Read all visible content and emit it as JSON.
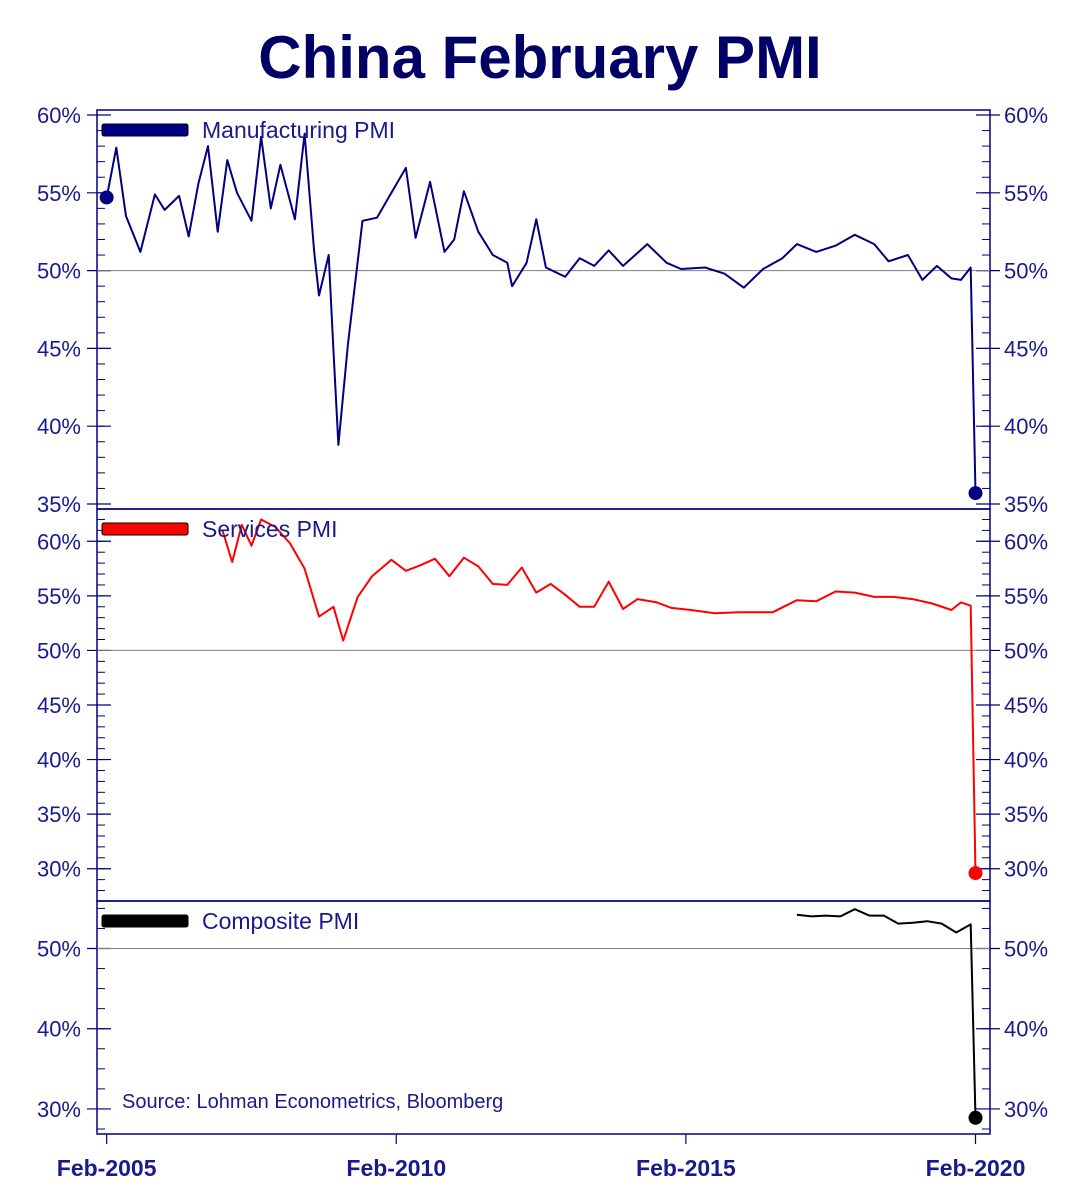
{
  "colors": {
    "title": "#000066",
    "axis": "#000080",
    "text": "#1a1a8c",
    "manufacturing": "#000080",
    "services": "#ff0000",
    "composite": "#000000",
    "refline": "#808080"
  },
  "source_text": "Source: Lohman Econometrics, Bloomberg",
  "chart_data": {
    "type": "line",
    "title": "China February PMI",
    "x_axis": {
      "ticks": [
        "Feb-2005",
        "Feb-2010",
        "Feb-2015",
        "Feb-2020"
      ],
      "range": [
        "2004-12",
        "2020-05"
      ]
    },
    "panels": [
      {
        "name": "Manufacturing PMI",
        "color": "#000080",
        "ylim": [
          35,
          60
        ],
        "yticks": [
          60,
          55,
          50,
          45,
          40,
          35
        ],
        "ytick_labels": [
          "60%",
          "55%",
          "50%",
          "45%",
          "40%",
          "35%"
        ],
        "reference_line": 50,
        "marker_points": [
          [
            "2005-02",
            54.7
          ],
          [
            "2020-02",
            35.7
          ]
        ],
        "points": [
          [
            "2005-02",
            54.7
          ],
          [
            "2005-04",
            57.9
          ],
          [
            "2005-06",
            53.5
          ],
          [
            "2005-09",
            51.2
          ],
          [
            "2005-12",
            54.9
          ],
          [
            "2006-02",
            53.9
          ],
          [
            "2006-05",
            54.8
          ],
          [
            "2006-07",
            52.2
          ],
          [
            "2006-09",
            55.6
          ],
          [
            "2006-11",
            58.0
          ],
          [
            "2007-01",
            52.5
          ],
          [
            "2007-03",
            57.1
          ],
          [
            "2007-05",
            55.0
          ],
          [
            "2007-08",
            53.2
          ],
          [
            "2007-10",
            58.6
          ],
          [
            "2007-12",
            54.0
          ],
          [
            "2008-02",
            56.8
          ],
          [
            "2008-05",
            53.3
          ],
          [
            "2008-07",
            58.8
          ],
          [
            "2008-09",
            51.2
          ],
          [
            "2008-10",
            48.4
          ],
          [
            "2008-12",
            51.0
          ],
          [
            "2009-01",
            44.8
          ],
          [
            "2009-02",
            38.8
          ],
          [
            "2009-04",
            45.3
          ],
          [
            "2009-07",
            53.2
          ],
          [
            "2009-10",
            53.4
          ],
          [
            "2010-01",
            55.0
          ],
          [
            "2010-04",
            56.6
          ],
          [
            "2010-06",
            52.1
          ],
          [
            "2010-09",
            55.7
          ],
          [
            "2010-12",
            51.2
          ],
          [
            "2011-02",
            52.0
          ],
          [
            "2011-04",
            55.1
          ],
          [
            "2011-07",
            52.5
          ],
          [
            "2011-10",
            51.0
          ],
          [
            "2012-01",
            50.5
          ],
          [
            "2012-02",
            49.0
          ],
          [
            "2012-05",
            50.5
          ],
          [
            "2012-07",
            53.3
          ],
          [
            "2012-09",
            50.2
          ],
          [
            "2013-01",
            49.6
          ],
          [
            "2013-04",
            50.8
          ],
          [
            "2013-07",
            50.3
          ],
          [
            "2013-10",
            51.3
          ],
          [
            "2014-01",
            50.3
          ],
          [
            "2014-06",
            51.7
          ],
          [
            "2014-10",
            50.5
          ],
          [
            "2015-01",
            50.1
          ],
          [
            "2015-06",
            50.2
          ],
          [
            "2015-10",
            49.8
          ],
          [
            "2016-02",
            48.9
          ],
          [
            "2016-06",
            50.1
          ],
          [
            "2016-10",
            50.8
          ],
          [
            "2017-01",
            51.7
          ],
          [
            "2017-05",
            51.2
          ],
          [
            "2017-09",
            51.6
          ],
          [
            "2018-01",
            52.3
          ],
          [
            "2018-05",
            51.7
          ],
          [
            "2018-08",
            50.6
          ],
          [
            "2018-12",
            51.0
          ],
          [
            "2019-03",
            49.4
          ],
          [
            "2019-06",
            50.3
          ],
          [
            "2019-09",
            49.5
          ],
          [
            "2019-11",
            49.4
          ],
          [
            "2020-01",
            50.2
          ],
          [
            "2020-02",
            35.7
          ]
        ]
      },
      {
        "name": "Services PMI",
        "color": "#ff0000",
        "ylim": [
          27.5,
          62.5
        ],
        "yticks": [
          60,
          55,
          50,
          45,
          40,
          35,
          30
        ],
        "ytick_labels": [
          "60%",
          "55%",
          "50%",
          "45%",
          "40%",
          "35%",
          "30%"
        ],
        "reference_line": 50,
        "marker_points": [
          [
            "2020-02",
            29.6
          ]
        ],
        "points": [
          [
            "2007-02",
            61.0
          ],
          [
            "2007-04",
            58.1
          ],
          [
            "2007-06",
            61.5
          ],
          [
            "2007-08",
            59.6
          ],
          [
            "2007-10",
            62.0
          ],
          [
            "2008-01",
            61.3
          ],
          [
            "2008-04",
            59.8
          ],
          [
            "2008-07",
            57.5
          ],
          [
            "2008-10",
            53.1
          ],
          [
            "2009-01",
            54.0
          ],
          [
            "2009-03",
            50.9
          ],
          [
            "2009-06",
            54.9
          ],
          [
            "2009-09",
            56.8
          ],
          [
            "2010-01",
            58.3
          ],
          [
            "2010-04",
            57.3
          ],
          [
            "2010-07",
            57.8
          ],
          [
            "2010-10",
            58.4
          ],
          [
            "2011-01",
            56.8
          ],
          [
            "2011-04",
            58.5
          ],
          [
            "2011-07",
            57.7
          ],
          [
            "2011-10",
            56.1
          ],
          [
            "2012-01",
            56.0
          ],
          [
            "2012-04",
            57.6
          ],
          [
            "2012-07",
            55.3
          ],
          [
            "2012-10",
            56.1
          ],
          [
            "2013-01",
            55.1
          ],
          [
            "2013-04",
            54.0
          ],
          [
            "2013-07",
            54.0
          ],
          [
            "2013-10",
            56.3
          ],
          [
            "2014-01",
            53.8
          ],
          [
            "2014-04",
            54.7
          ],
          [
            "2014-08",
            54.4
          ],
          [
            "2014-11",
            53.9
          ],
          [
            "2015-03",
            53.7
          ],
          [
            "2015-08",
            53.4
          ],
          [
            "2016-01",
            53.5
          ],
          [
            "2016-04",
            53.5
          ],
          [
            "2016-08",
            53.5
          ],
          [
            "2017-01",
            54.6
          ],
          [
            "2017-05",
            54.5
          ],
          [
            "2017-09",
            55.4
          ],
          [
            "2018-01",
            55.3
          ],
          [
            "2018-05",
            54.9
          ],
          [
            "2018-09",
            54.9
          ],
          [
            "2019-01",
            54.7
          ],
          [
            "2019-05",
            54.3
          ],
          [
            "2019-09",
            53.7
          ],
          [
            "2019-11",
            54.4
          ],
          [
            "2020-01",
            54.1
          ],
          [
            "2020-02",
            29.6
          ]
        ]
      },
      {
        "name": "Composite PMI",
        "color": "#000000",
        "ylim": [
          27.5,
          55.3
        ],
        "yticks": [
          50,
          40,
          30
        ],
        "ytick_labels": [
          "50%",
          "40%",
          "30%"
        ],
        "reference_line": 50,
        "marker_points": [
          [
            "2020-02",
            28.9
          ]
        ],
        "points": [
          [
            "2017-01",
            54.2
          ],
          [
            "2017-04",
            54.0
          ],
          [
            "2017-07",
            54.1
          ],
          [
            "2017-10",
            54.0
          ],
          [
            "2018-01",
            54.9
          ],
          [
            "2018-04",
            54.1
          ],
          [
            "2018-07",
            54.1
          ],
          [
            "2018-10",
            53.1
          ],
          [
            "2019-01",
            53.2
          ],
          [
            "2019-04",
            53.4
          ],
          [
            "2019-07",
            53.1
          ],
          [
            "2019-10",
            52.0
          ],
          [
            "2020-01",
            53.0
          ],
          [
            "2020-02",
            28.9
          ]
        ]
      }
    ]
  }
}
